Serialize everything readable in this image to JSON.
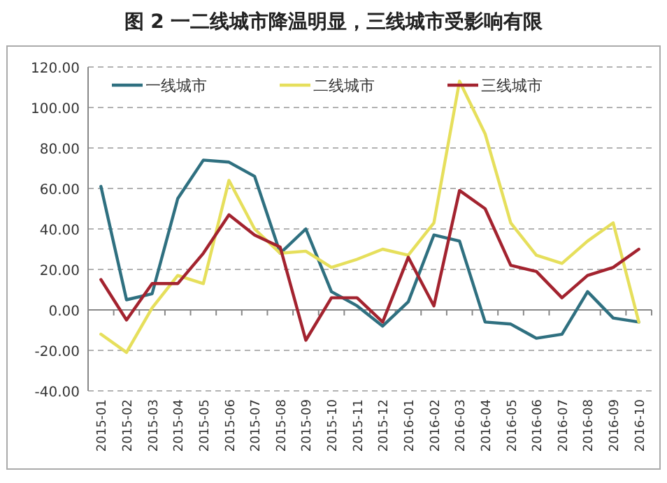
{
  "chart_data": {
    "type": "line",
    "title": "图 2 一二线城市降温明显，三线城市受影响有限",
    "categories": [
      "2015-01",
      "2015-02",
      "2015-03",
      "2015-04",
      "2015-05",
      "2015-06",
      "2015-07",
      "2015-08",
      "2015-09",
      "2015-10",
      "2015-11",
      "2015-12",
      "2016-01",
      "2016-02",
      "2016-03",
      "2016-04",
      "2016-05",
      "2016-06",
      "2016-07",
      "2016-08",
      "2016-09",
      "2016-10"
    ],
    "series": [
      {
        "name": "一线城市",
        "color": "#2f7080",
        "values": [
          61,
          5,
          8,
          55,
          74,
          73,
          66,
          28,
          40,
          9,
          2,
          -8,
          4,
          37,
          34,
          -6,
          -7,
          -14,
          -12,
          9,
          -4,
          -6
        ]
      },
      {
        "name": "二线城市",
        "color": "#e6df5c",
        "values": [
          -12,
          -21,
          1,
          17,
          13,
          64,
          40,
          28,
          29,
          21,
          25,
          30,
          27,
          43,
          113,
          87,
          43,
          27,
          23,
          34,
          43,
          -6
        ]
      },
      {
        "name": "三线城市",
        "color": "#a3232f",
        "values": [
          15,
          -5,
          13,
          13,
          28,
          47,
          37,
          31,
          -15,
          6,
          6,
          -6,
          26,
          2,
          59,
          50,
          22,
          19,
          6,
          17,
          21,
          30
        ]
      }
    ],
    "ylim": [
      -40,
      120
    ],
    "yticks": [
      {
        "value": -40,
        "label": "-40.00"
      },
      {
        "value": -20,
        "label": "-20.00"
      },
      {
        "value": 0,
        "label": "0.00"
      },
      {
        "value": 20,
        "label": "20.00"
      },
      {
        "value": 40,
        "label": "40.00"
      },
      {
        "value": 60,
        "label": "60.00"
      },
      {
        "value": 80,
        "label": "80.00"
      },
      {
        "value": 100,
        "label": "100.00"
      },
      {
        "value": 120,
        "label": "120.00"
      }
    ],
    "grid": "y",
    "legend": "top",
    "line_style": "solid",
    "marker": "none"
  }
}
